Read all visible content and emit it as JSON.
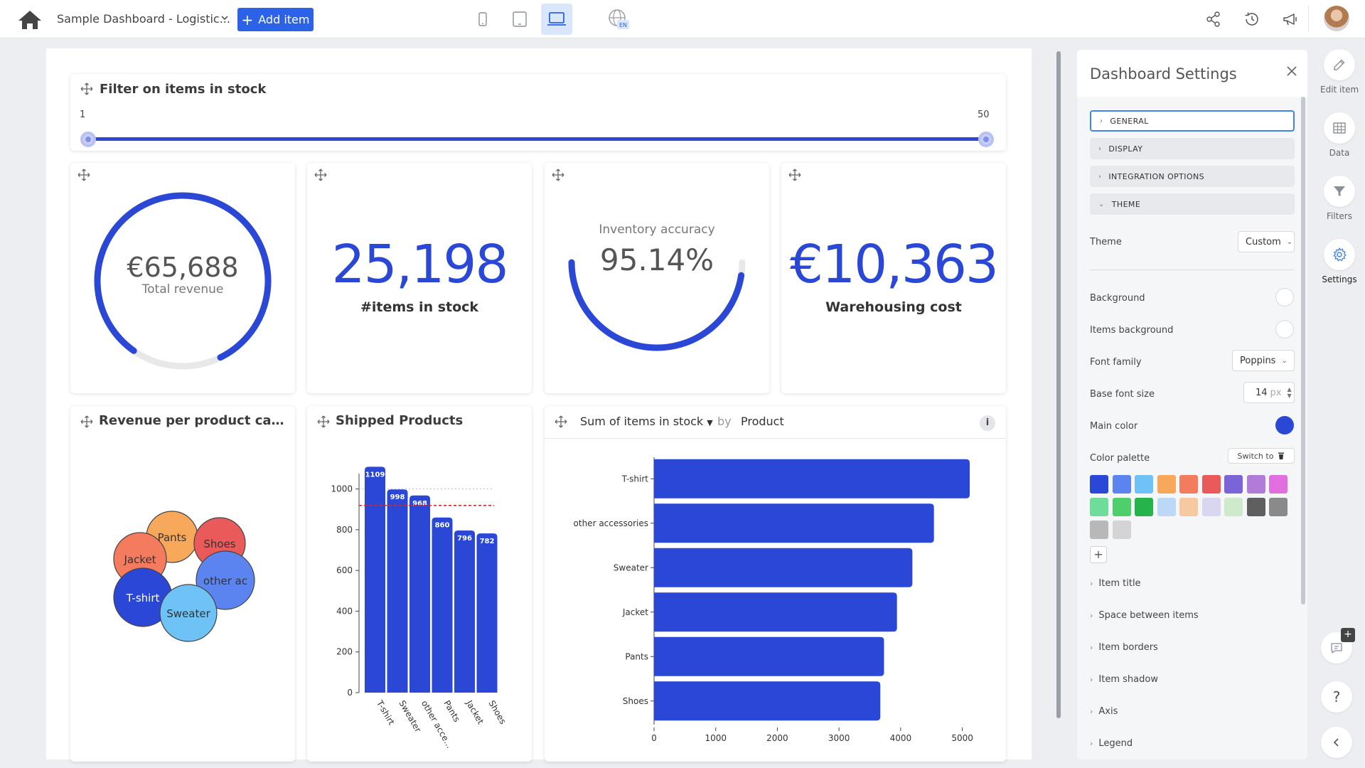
{
  "topbar": {
    "title": "Sample Dashboard - Logistic...",
    "add_item_label": "Add item",
    "language_badge": "EN"
  },
  "slider_card": {
    "title": "Filter on items in stock",
    "min_label": "1",
    "max_label": "50",
    "range": [
      1,
      50
    ]
  },
  "kpis": {
    "revenue": {
      "value": "€65,688",
      "label": "Total revenue",
      "progress": 0.83
    },
    "items": {
      "value": "25,198",
      "label": "#items in stock"
    },
    "accuracy": {
      "title": "Inventory accuracy",
      "value": "95.14%",
      "progress": 0.9514
    },
    "cost": {
      "value": "€10,363",
      "label": "Warehousing cost"
    }
  },
  "revenue_card": {
    "title": "Revenue per product categ..."
  },
  "shipped_card": {
    "title": "Shipped Products"
  },
  "stock_card": {
    "measure": "Sum of items in stock",
    "by": "by",
    "dimension": "Product",
    "info": "i"
  },
  "settings": {
    "title": "Dashboard Settings",
    "sections": [
      "GENERAL",
      "DISPLAY",
      "INTEGRATION OPTIONS",
      "THEME"
    ],
    "theme_label": "Theme",
    "theme_value": "Custom",
    "background_label": "Background",
    "items_background_label": "Items background",
    "font_family_label": "Font family",
    "font_family_value": "Poppins",
    "base_font_size_label": "Base font size",
    "base_font_size_value": "14",
    "base_font_size_unit": "px",
    "main_color_label": "Main color",
    "main_color": "#2a47d6",
    "color_palette_label": "Color palette",
    "switch_to_label": "Switch to",
    "palette": [
      "#2a47d6",
      "#5b84f0",
      "#6fc2f5",
      "#f7a85a",
      "#f57b5e",
      "#ea5a5a",
      "#7b63d8",
      "#b27bd8",
      "#e16fe0",
      "#6fdd9a",
      "#4fcf6c",
      "#27b34c",
      "#bcd8f6",
      "#f7c9a1",
      "#d9d6f0",
      "#cfe9cd",
      "#5f5f5f",
      "#8a8a8a",
      "#b8b8b8",
      "#d4d4d4"
    ],
    "collapsibles": [
      "Item title",
      "Space between items",
      "Item borders",
      "Item shadow",
      "Axis",
      "Legend"
    ]
  },
  "rail": {
    "items": [
      {
        "label": "Edit item",
        "icon": "edit-icon"
      },
      {
        "label": "Data",
        "icon": "table-icon"
      },
      {
        "label": "Filters",
        "icon": "filter-icon"
      },
      {
        "label": "Settings",
        "icon": "gear-icon"
      }
    ]
  },
  "chart_data": [
    {
      "type": "bubble",
      "title": "Revenue per product categ...",
      "categories": [
        "Pants",
        "Shoes",
        "Jacket",
        "other ac",
        "T-shirt",
        "Sweater"
      ],
      "colors": [
        "#f7a85a",
        "#ea5a5a",
        "#f57b5e",
        "#5b84f0",
        "#2a47d6",
        "#6fc2f5"
      ]
    },
    {
      "type": "bar",
      "title": "Shipped Products",
      "categories": [
        "T-shirt",
        "Sweater",
        "other acce...",
        "Pants",
        "Jacket",
        "Shoes"
      ],
      "values": [
        1109,
        998,
        968,
        860,
        796,
        782
      ],
      "data_labels": [
        "1109",
        "998",
        "968",
        "860",
        "796",
        "782"
      ],
      "ylim": [
        0,
        1100
      ],
      "yticks": [
        0,
        200,
        400,
        600,
        800,
        1000
      ],
      "reference_line": 919,
      "color": "#2a47d6"
    },
    {
      "type": "bar",
      "orientation": "horizontal",
      "title": "Sum of items in stock by Product",
      "categories": [
        "T-shirt",
        "other accessories",
        "Sweater",
        "Jacket",
        "Pants",
        "Shoes"
      ],
      "values": [
        5120,
        4540,
        4190,
        3940,
        3730,
        3670
      ],
      "xlim": [
        0,
        5200
      ],
      "xticks": [
        0,
        1000,
        2000,
        3000,
        4000,
        5000
      ],
      "color": "#2a47d6"
    }
  ]
}
